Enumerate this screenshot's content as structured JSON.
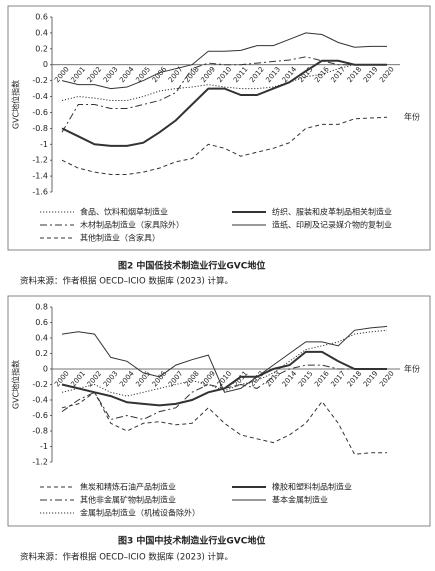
{
  "chart_data": [
    {
      "type": "line",
      "y_label": "GVC地位指数",
      "x_label": "年份",
      "caption": "图2  中国低技术制造业行业GVC地位",
      "source": "资料来源：作者根据 OECD–ICIO 数据库 (2023) 计算。",
      "categories": [
        "2000",
        "2001",
        "2002",
        "2003",
        "2004",
        "2005",
        "2006",
        "2007",
        "2008",
        "2009",
        "2010",
        "2011",
        "2012",
        "2013",
        "2014",
        "2015",
        "2016",
        "2017",
        "2018",
        "2019",
        "2020"
      ],
      "ylim": [
        -1.6,
        0.6
      ],
      "yticks": [
        -1.6,
        -1.4,
        -1.2,
        -1,
        -0.8,
        -0.6,
        -0.4,
        -0.2,
        0,
        0.2,
        0.4,
        0.6
      ],
      "series": [
        {
          "name": "食品、饮料和烟草制造业",
          "color": "#333333",
          "style": "dotted",
          "values": [
            -0.45,
            -0.4,
            -0.42,
            -0.45,
            -0.45,
            -0.4,
            -0.33,
            -0.3,
            -0.28,
            -0.25,
            -0.28,
            -0.3,
            -0.3,
            -0.28,
            -0.22,
            -0.15,
            -0.12,
            -0.05,
            0,
            0,
            0
          ]
        },
        {
          "name": "纺织、服装和皮革制品相关制造业",
          "color": "#333333",
          "style": "thick",
          "values": [
            -0.8,
            -0.9,
            -1,
            -1.02,
            -1.02,
            -0.98,
            -0.85,
            -0.7,
            -0.5,
            -0.3,
            -0.3,
            -0.38,
            -0.38,
            -0.3,
            -0.22,
            -0.08,
            0.05,
            0.05,
            0,
            0,
            0
          ]
        },
        {
          "name": "木材制品制造业（家具除外）",
          "color": "#333333",
          "style": "dash-dot",
          "values": [
            -0.85,
            -0.5,
            -0.5,
            -0.55,
            -0.55,
            -0.5,
            -0.45,
            -0.35,
            -0.05,
            0.02,
            0,
            0,
            0.02,
            0.04,
            0.06,
            0.1,
            0.05,
            0,
            0,
            0,
            0
          ]
        },
        {
          "name": "造纸、印刷及记录媒介物的复制业",
          "color": "#333333",
          "style": "solid",
          "values": [
            -0.2,
            -0.25,
            -0.25,
            -0.3,
            -0.28,
            -0.2,
            -0.1,
            -0.05,
            0,
            0.17,
            0.17,
            0.18,
            0.24,
            0.24,
            0.32,
            0.4,
            0.38,
            0.28,
            0.22,
            0.23,
            0.23
          ]
        },
        {
          "name": "其他制造业（含家具）",
          "color": "#333333",
          "style": "dashed",
          "values": [
            -1.2,
            -1.3,
            -1.35,
            -1.38,
            -1.38,
            -1.35,
            -1.3,
            -1.22,
            -1.18,
            -1,
            -1.05,
            -1.15,
            -1.1,
            -1.05,
            -0.98,
            -0.8,
            -0.75,
            -0.75,
            -0.68,
            -0.67,
            -0.66
          ]
        }
      ]
    },
    {
      "type": "line",
      "y_label": "GVC地位指数",
      "x_label": "年份",
      "caption": "图3  中国中技术制造业行业GVC地位",
      "source": "资料来源：作者根据 OECD–ICIO 数据库 (2023) 计算。",
      "categories": [
        "2000",
        "2001",
        "2002",
        "2003",
        "2004",
        "2005",
        "2006",
        "2007",
        "2008",
        "2009",
        "2010",
        "2011",
        "2012",
        "2013",
        "2014",
        "2015",
        "2016",
        "2017",
        "2018",
        "2019",
        "2020"
      ],
      "ylim": [
        -1.2,
        0.8
      ],
      "yticks": [
        -1.2,
        -1,
        -0.8,
        -0.6,
        -0.4,
        -0.2,
        0,
        0.2,
        0.4,
        0.6,
        0.8
      ],
      "series": [
        {
          "name": "焦炭和精炼石油产品制造业",
          "color": "#333333",
          "style": "dashed",
          "values": [
            -0.5,
            -0.45,
            -0.3,
            -0.7,
            -0.8,
            -0.7,
            -0.68,
            -0.72,
            -0.7,
            -0.5,
            -0.7,
            -0.85,
            -0.9,
            -0.95,
            -0.85,
            -0.7,
            -0.42,
            -0.7,
            -1.1,
            -1.08,
            -1.08
          ]
        },
        {
          "name": "橡胶和塑料制品制造业",
          "color": "#333333",
          "style": "thick",
          "values": [
            -0.2,
            -0.25,
            -0.3,
            -0.35,
            -0.43,
            -0.45,
            -0.47,
            -0.45,
            -0.4,
            -0.3,
            -0.25,
            -0.1,
            -0.1,
            0,
            0.05,
            0.22,
            0.22,
            0.1,
            0,
            0,
            0
          ]
        },
        {
          "name": "其他非金属矿物制品制造业",
          "color": "#333333",
          "style": "dash-dot",
          "values": [
            -0.55,
            -0.4,
            -0.3,
            -0.65,
            -0.6,
            -0.65,
            -0.55,
            -0.5,
            -0.3,
            -0.2,
            -0.25,
            -0.2,
            -0.25,
            -0.1,
            0,
            0.05,
            0.05,
            0,
            0,
            0,
            0
          ]
        },
        {
          "name": "基本金属制造业",
          "color": "#333333",
          "style": "solid",
          "values": [
            0.45,
            0.48,
            0.45,
            0.15,
            0.1,
            -0.05,
            -0.1,
            0.05,
            0.12,
            0.18,
            -0.3,
            -0.25,
            -0.1,
            0.05,
            0.2,
            0.35,
            0.35,
            0.3,
            0.5,
            0.53,
            0.55
          ]
        },
        {
          "name": "金属制品制造业（机械设备除外）",
          "color": "#333333",
          "style": "dotted",
          "values": [
            -0.3,
            -0.25,
            -0.2,
            -0.3,
            -0.35,
            -0.3,
            -0.25,
            -0.2,
            -0.15,
            -0.2,
            -0.28,
            -0.2,
            -0.15,
            -0.05,
            0.1,
            0.25,
            0.3,
            0.35,
            0.45,
            0.48,
            0.5
          ]
        }
      ]
    }
  ]
}
